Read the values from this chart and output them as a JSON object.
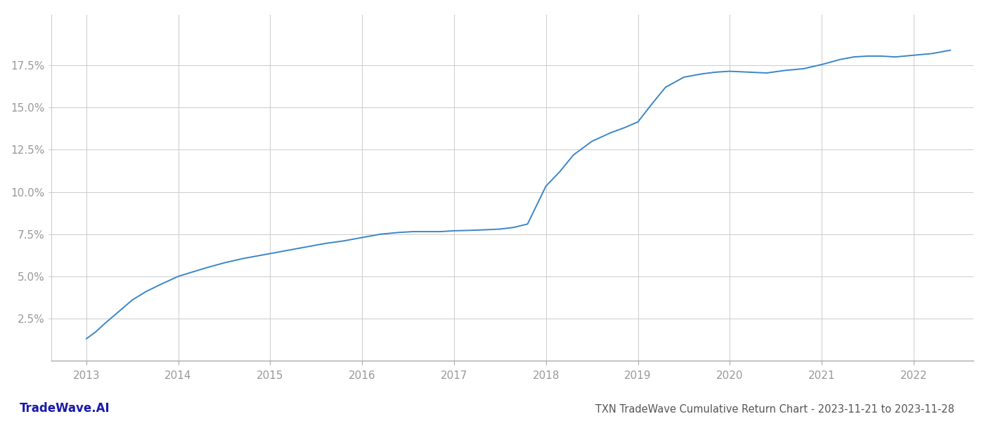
{
  "title": "TXN TradeWave Cumulative Return Chart - 2023-11-21 to 2023-11-28",
  "watermark": "TradeWave.AI",
  "line_color": "#3a86c8",
  "background_color": "#ffffff",
  "grid_color": "#cccccc",
  "x_years": [
    2013,
    2014,
    2015,
    2016,
    2017,
    2018,
    2019,
    2020,
    2021,
    2022
  ],
  "x_data": [
    2013.0,
    2013.1,
    2013.2,
    2013.35,
    2013.5,
    2013.65,
    2013.8,
    2013.92,
    2014.0,
    2014.15,
    2014.3,
    2014.5,
    2014.7,
    2014.85,
    2015.0,
    2015.2,
    2015.4,
    2015.6,
    2015.8,
    2016.0,
    2016.2,
    2016.4,
    2016.55,
    2016.7,
    2016.85,
    2017.0,
    2017.15,
    2017.3,
    2017.5,
    2017.65,
    2017.8,
    2018.0,
    2018.15,
    2018.3,
    2018.5,
    2018.7,
    2018.85,
    2019.0,
    2019.15,
    2019.3,
    2019.5,
    2019.7,
    2019.85,
    2020.0,
    2020.2,
    2020.4,
    2020.6,
    2020.8,
    2021.0,
    2021.2,
    2021.35,
    2021.5,
    2021.65,
    2021.8,
    2022.0,
    2022.2,
    2022.4
  ],
  "y_data": [
    1.3,
    1.7,
    2.2,
    2.9,
    3.6,
    4.1,
    4.5,
    4.8,
    5.0,
    5.25,
    5.5,
    5.8,
    6.05,
    6.2,
    6.35,
    6.55,
    6.75,
    6.95,
    7.1,
    7.3,
    7.5,
    7.6,
    7.65,
    7.65,
    7.65,
    7.7,
    7.72,
    7.75,
    7.8,
    7.9,
    8.1,
    10.35,
    11.2,
    12.2,
    13.0,
    13.5,
    13.8,
    14.15,
    15.2,
    16.2,
    16.8,
    17.0,
    17.1,
    17.15,
    17.1,
    17.05,
    17.2,
    17.3,
    17.55,
    17.85,
    18.0,
    18.05,
    18.05,
    18.0,
    18.1,
    18.2,
    18.4
  ],
  "ylim": [
    0,
    20.5
  ],
  "yticks": [
    2.5,
    5.0,
    7.5,
    10.0,
    12.5,
    15.0,
    17.5
  ],
  "xlim": [
    2012.62,
    2022.65
  ],
  "title_fontsize": 10.5,
  "tick_fontsize": 11,
  "watermark_fontsize": 12,
  "axis_label_color": "#999999",
  "title_color": "#555555"
}
